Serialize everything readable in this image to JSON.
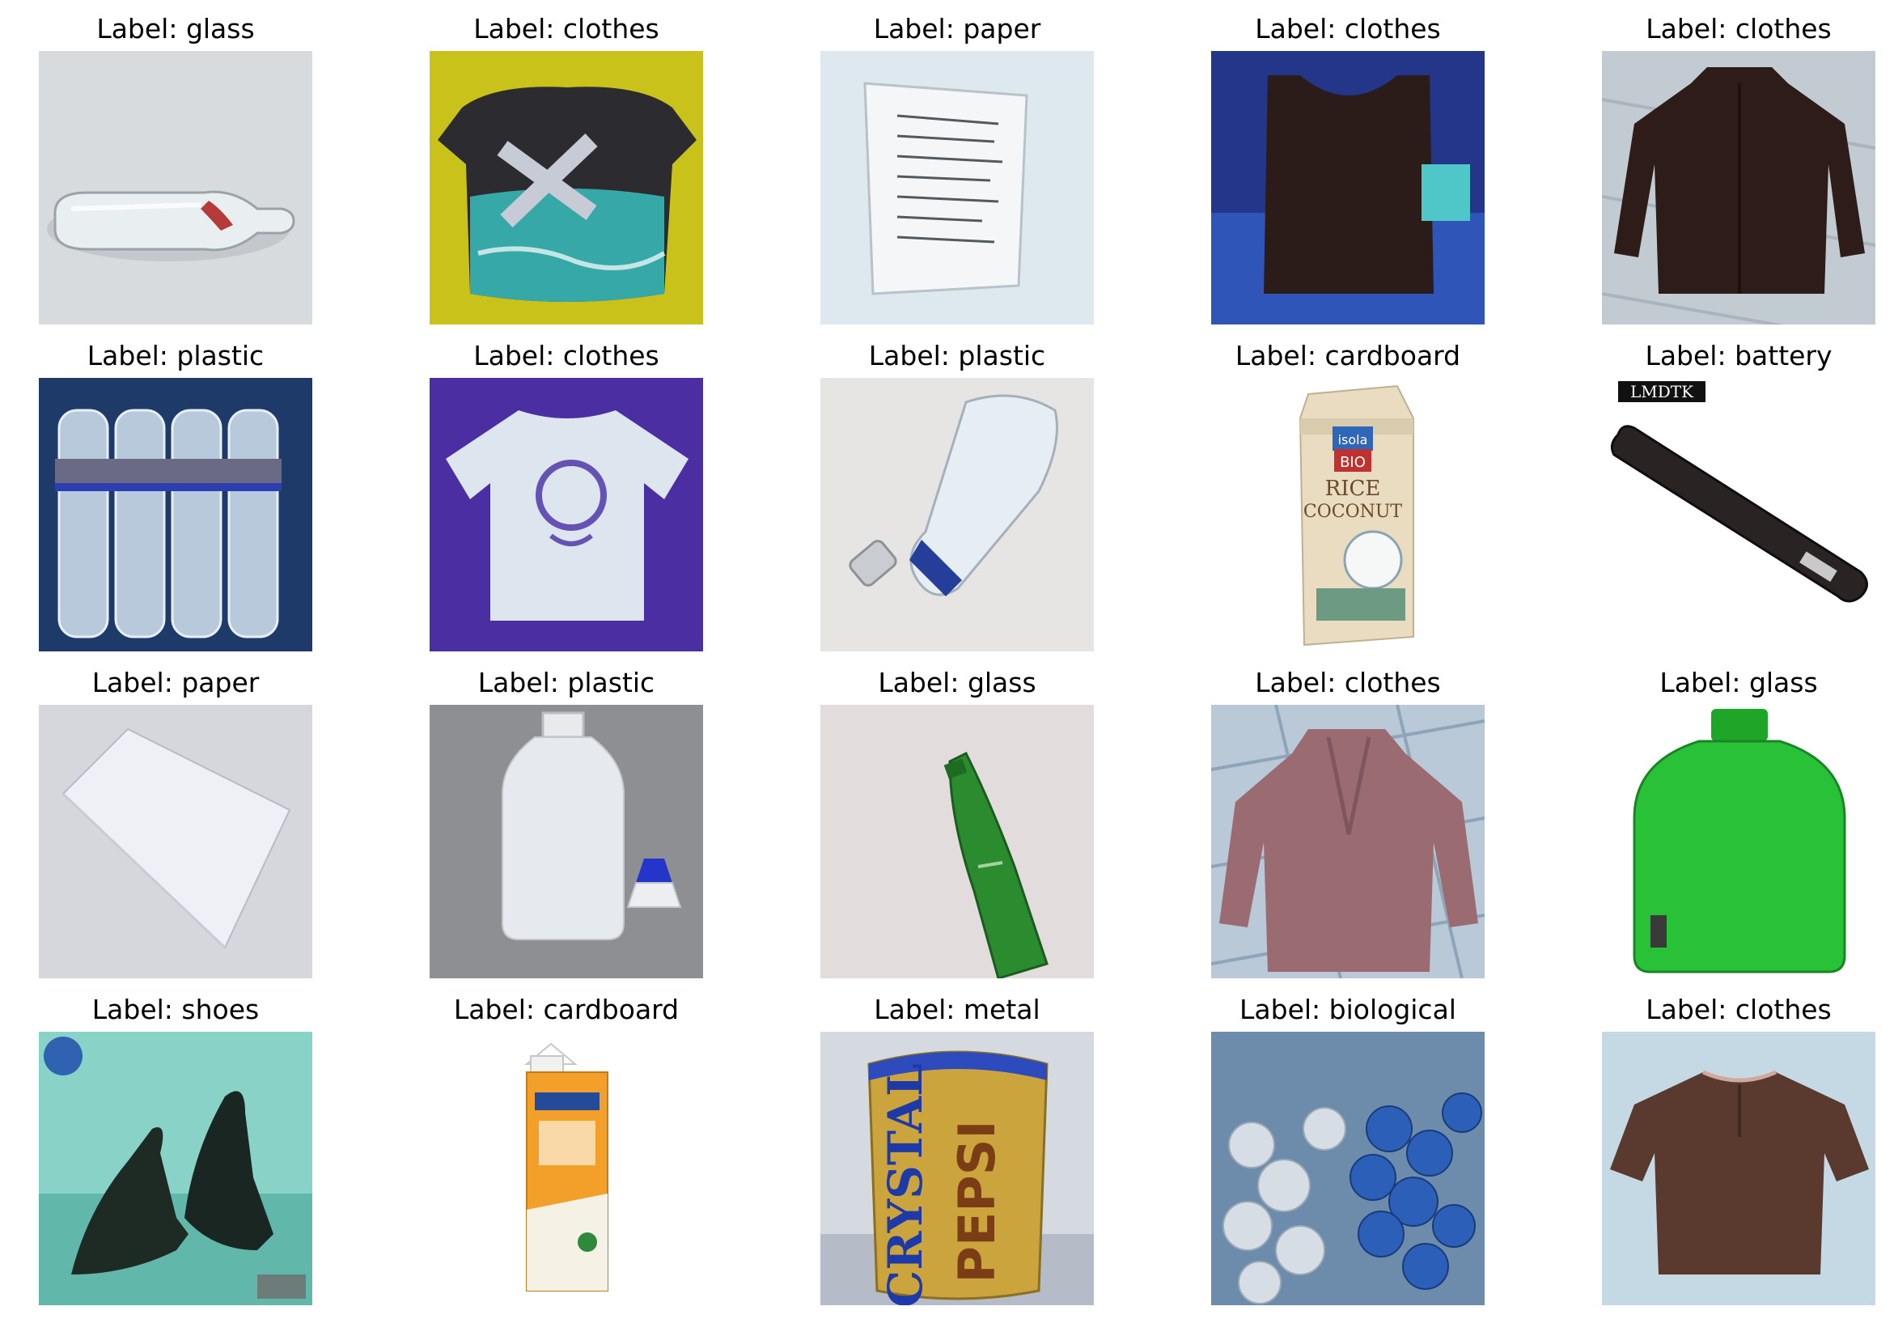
{
  "figure": {
    "panels": [
      {
        "label": "Label: glass",
        "subject": "clear-glass-bottle-lying-on-white-cloth",
        "background": "#d8dbde"
      },
      {
        "label": "Label: clothes",
        "subject": "dark-t-shirt-with-teal-print-on-yellow",
        "background": "#c9c21a"
      },
      {
        "label": "Label: paper",
        "subject": "crumpled-paper-sheet-on-light-blue",
        "background": "#dde9ef"
      },
      {
        "label": "Label: clothes",
        "subject": "dark-brown-tank-top-on-blue-shelf",
        "background": "#1c2e7a"
      },
      {
        "label": "Label: clothes",
        "subject": "dark-brown-shirt-on-wooden-floor",
        "background": "#c3cbd2"
      },
      {
        "label": "Label: plastic",
        "subject": "pack-of-water-bottles-in-blue-crate",
        "background": "#1f3f6e"
      },
      {
        "label": "Label: clothes",
        "subject": "light-t-shirt-with-purple-print-on-violet",
        "background": "#4a2ea2"
      },
      {
        "label": "Label: plastic",
        "subject": "crushed-plastic-water-bottle",
        "background": "#e7e4e4"
      },
      {
        "label": "Label: cardboard",
        "subject": "rice-coconut-drink-carton",
        "background": "#ffffff"
      },
      {
        "label": "Label: battery",
        "subject": "laptop-battery-with-watermark",
        "background": "#ffffff"
      },
      {
        "label": "Label: paper",
        "subject": "white-paper-sheet-on-grey",
        "background": "#d6d7dc"
      },
      {
        "label": "Label: plastic",
        "subject": "white-plastic-bottle-with-dropper-cap",
        "background": "#939497"
      },
      {
        "label": "Label: glass",
        "subject": "green-glass-beer-bottle",
        "background": "#e2dcdc"
      },
      {
        "label": "Label: clothes",
        "subject": "mauve-coat-on-tiled-floor",
        "background": "#b9c9d8"
      },
      {
        "label": "Label: glass",
        "subject": "green-glass-jug-bottle",
        "background": "#ffffff"
      },
      {
        "label": "Label: shoes",
        "subject": "black-high-heel-shoes-on-teal",
        "background": "#8ed2c6"
      },
      {
        "label": "Label: cardboard",
        "subject": "orange-milk-carton",
        "background": "#ffffff"
      },
      {
        "label": "Label: metal",
        "subject": "crystal-pepsi-can",
        "background": "#d9dde4"
      },
      {
        "label": "Label: biological",
        "subject": "hanging-garlic-and-blue-onions",
        "background": "#7c9bb8"
      },
      {
        "label": "Label: clothes",
        "subject": "brown-polo-shirt-on-speckled-surface",
        "background": "#c7dbe6"
      }
    ],
    "watermarks": {
      "battery": "LMDTK",
      "can_brand_top": "CRYSTAL",
      "can_brand_bottom": "PEPSI",
      "carton_top": "isola",
      "carton_badge": "BIO",
      "carton_name_1": "RICE",
      "carton_name_2": "COCONUT"
    }
  }
}
